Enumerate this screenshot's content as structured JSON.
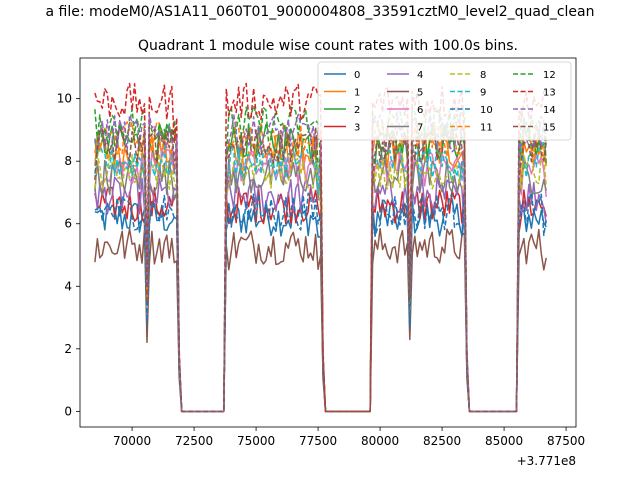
{
  "page": {
    "suptitle": "a file: modeM0/AS1A11_060T01_9000004808_33591cztM0_level2_quad_clean"
  },
  "chart_data": {
    "type": "line",
    "title": "Quadrant 1 module wise count rates with 100.0s bins.",
    "xlabel": "",
    "ylabel": "",
    "x_offset_label": "+3.771e8",
    "xlim": [
      67900,
      87900
    ],
    "ylim": [
      -0.5,
      11.3
    ],
    "x_ticks": [
      70000,
      72500,
      75000,
      77500,
      80000,
      82500,
      85000,
      87500
    ],
    "x_tick_labels": [
      "70000",
      "72500",
      "75000",
      "77500",
      "80000",
      "82500",
      "85000",
      "87500"
    ],
    "y_ticks": [
      0,
      2,
      4,
      6,
      8,
      10
    ],
    "y_tick_labels": [
      "0",
      "2",
      "4",
      "6",
      "8",
      "10"
    ],
    "grid": false,
    "legend_placement": "top-right",
    "legend_columns": 4,
    "active_segments": [
      [
        68500,
        71800
      ],
      [
        73800,
        77600
      ],
      [
        79700,
        83400
      ],
      [
        85600,
        86700
      ]
    ],
    "drop_points": [
      70600,
      81200
    ],
    "series": [
      {
        "name": "0",
        "color": "#1f77b4",
        "dash": "solid",
        "level": 6.2
      },
      {
        "name": "1",
        "color": "#ff7f0e",
        "dash": "solid",
        "level": 8.3
      },
      {
        "name": "2",
        "color": "#2ca02c",
        "dash": "solid",
        "level": 8.6
      },
      {
        "name": "3",
        "color": "#d62728",
        "dash": "solid",
        "level": 6.6
      },
      {
        "name": "4",
        "color": "#9467bd",
        "dash": "solid",
        "level": 6.9
      },
      {
        "name": "5",
        "color": "#8c564b",
        "dash": "solid",
        "level": 5.3
      },
      {
        "name": "6",
        "color": "#e377c2",
        "dash": "solid",
        "level": 7.8
      },
      {
        "name": "7",
        "color": "#7f7f7f",
        "dash": "solid",
        "level": 7.5
      },
      {
        "name": "8",
        "color": "#bcbd22",
        "dash": "dashed",
        "level": 7.7
      },
      {
        "name": "9",
        "color": "#17becf",
        "dash": "dashed",
        "level": 8.0
      },
      {
        "name": "10",
        "color": "#1f77b4",
        "dash": "dashed",
        "level": 6.4
      },
      {
        "name": "11",
        "color": "#ff7f0e",
        "dash": "dashed",
        "level": 8.7
      },
      {
        "name": "12",
        "color": "#2ca02c",
        "dash": "dashed",
        "level": 9.2
      },
      {
        "name": "13",
        "color": "#d62728",
        "dash": "dashed",
        "level": 9.9
      },
      {
        "name": "14",
        "color": "#9467bd",
        "dash": "dashed",
        "level": 8.9
      },
      {
        "name": "15",
        "color": "#8c564b",
        "dash": "dashed",
        "level": 8.5
      }
    ]
  }
}
